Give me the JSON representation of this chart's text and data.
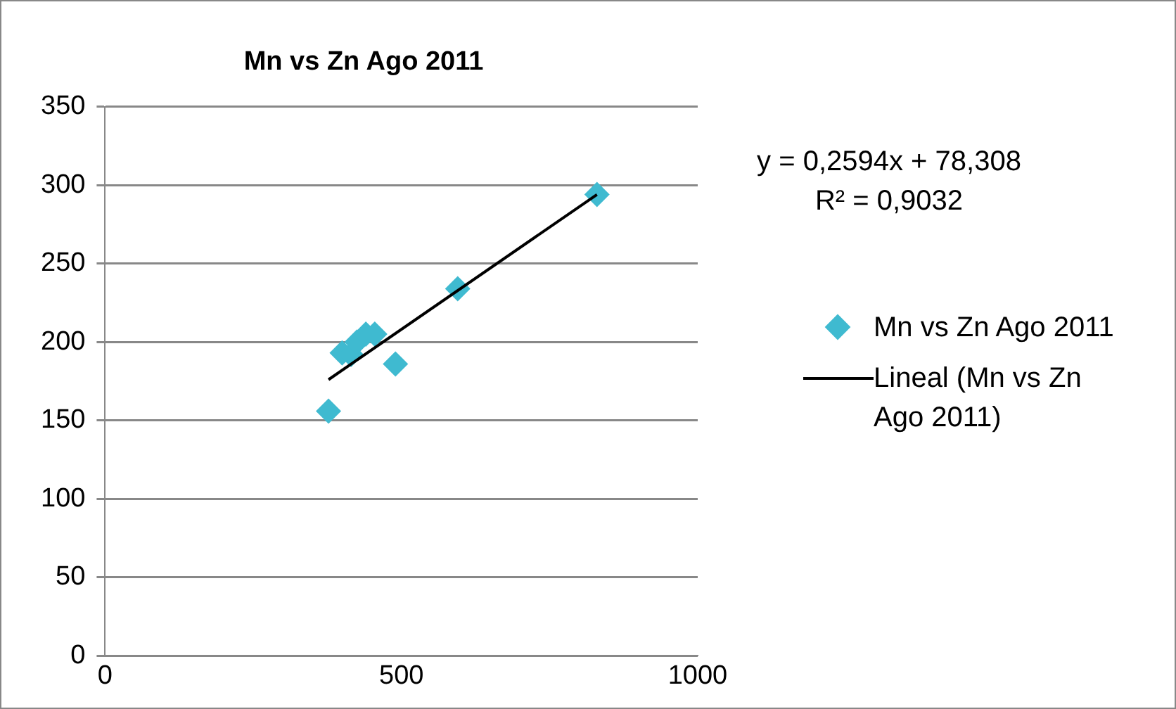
{
  "chart_data": {
    "type": "scatter",
    "title": "Mn vs Zn Ago 2011",
    "series": [
      {
        "name": "Mn vs Zn Ago 2011",
        "type": "scatter",
        "color": "#3fbad0",
        "x": [
          377,
          400,
          415,
          425,
          440,
          455,
          490,
          595,
          830
        ],
        "values": [
          156,
          193,
          192,
          200,
          205,
          205,
          186,
          234,
          294
        ],
        "marker": "diamond"
      },
      {
        "name": "Lineal (Mn vs Zn Ago 2011)",
        "type": "line",
        "color": "#000000",
        "x": [
          377,
          830
        ],
        "values": [
          176,
          294
        ],
        "marker": "none"
      }
    ],
    "annotations": [
      "y = 0,2594x + 78,308",
      "R² = 0,9032"
    ],
    "xlim": [
      0,
      1000
    ],
    "xticks": [
      0,
      500,
      1000
    ],
    "ylim": [
      0,
      350
    ],
    "yticks": [
      0,
      50,
      100,
      150,
      200,
      250,
      300,
      350
    ],
    "grid": "y",
    "legend": "right"
  }
}
